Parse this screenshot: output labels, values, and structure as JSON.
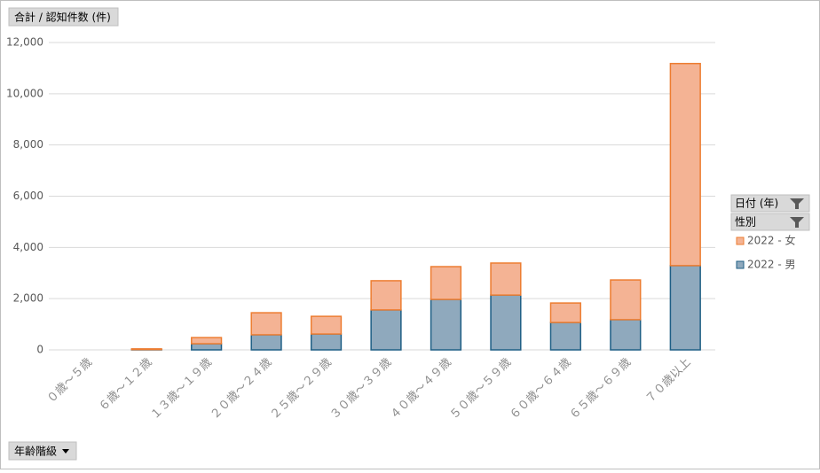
{
  "chart_data": {
    "type": "stacked_bar",
    "value_field": "合計 / 認知件数 (件)",
    "axis_field": "年齢階級",
    "legend_fields": [
      "日付 (年)",
      "性別"
    ],
    "categories": [
      "０歳～５歳",
      "６歳～１２歳",
      "１３歳～１９歳",
      "２０歳～２４歳",
      "２５歳～２９歳",
      "３０歳～３９歳",
      "４０歳～４９歳",
      "５０歳～５９歳",
      "６０歳～６４歳",
      "６５歳～６９歳",
      "７０歳以上"
    ],
    "series": [
      {
        "name": "2022 - 男",
        "color": "#8fa9bd",
        "stroke": "#1f5f85",
        "values": [
          0,
          10,
          240,
          590,
          620,
          1560,
          1970,
          2140,
          1070,
          1180,
          3290
        ]
      },
      {
        "name": "2022 - 女",
        "color": "#f4b394",
        "stroke": "#ed7d31",
        "values": [
          0,
          30,
          240,
          860,
          690,
          1140,
          1280,
          1250,
          760,
          1550,
          7890
        ]
      }
    ],
    "ylim": [
      0,
      12000
    ],
    "yticks": [
      0,
      {
        "value": 2000,
        "label": "2,000"
      },
      {
        "value": 4000,
        "label": "4,000"
      },
      {
        "value": 6000,
        "label": "6,000"
      },
      {
        "value": 8000,
        "label": "8,000"
      },
      {
        "value": 10000,
        "label": "10,000"
      },
      {
        "value": 12000,
        "label": "12,000"
      }
    ],
    "grid": true
  }
}
